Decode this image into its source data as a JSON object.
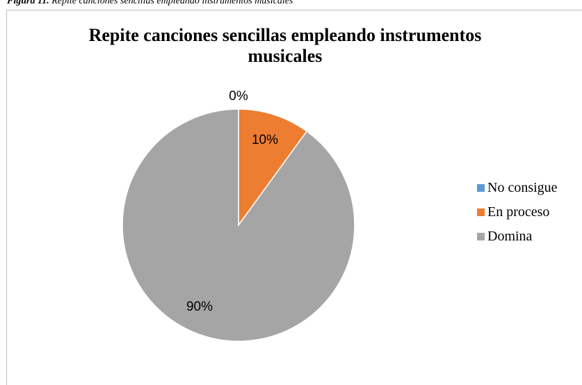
{
  "caption": {
    "label": "Figura 11.",
    "text": "Repite canciones sencillas empleando instrumentos musicales"
  },
  "chart_data": {
    "type": "pie",
    "title_line1": "Repite canciones sencillas empleando instrumentos",
    "title_line2": "musicales",
    "legend_position": "right",
    "slices": [
      {
        "label": "No consigue",
        "value": 0,
        "display": "0%",
        "color": "#5B9BD5"
      },
      {
        "label": "En proceso",
        "value": 10,
        "display": "10%",
        "color": "#ED7D31"
      },
      {
        "label": "Domina",
        "value": 90,
        "display": "90%",
        "color": "#A5A5A5"
      }
    ]
  }
}
